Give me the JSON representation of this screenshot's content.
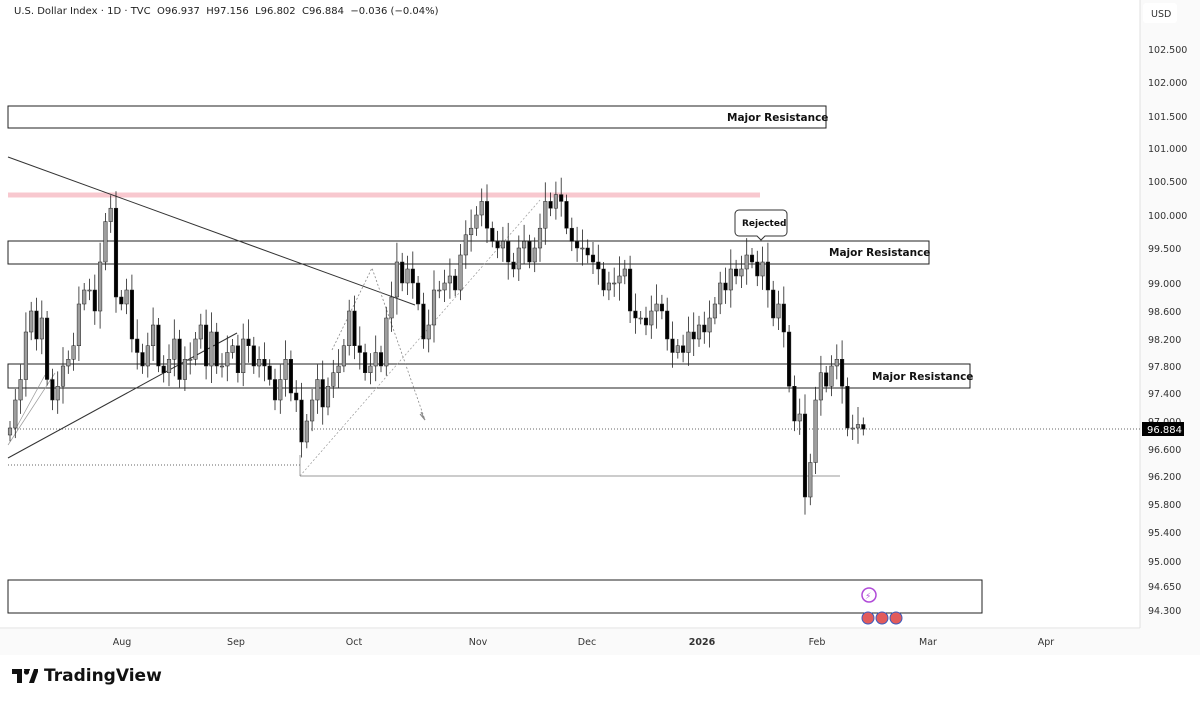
{
  "header": {
    "symbol": "U.S. Dollar Index",
    "interval": "1D",
    "source": "TVC",
    "open": "O96.937",
    "high": "H97.156",
    "low": "L96.802",
    "close": "C96.884",
    "change": "−0.036 (−0.04%)"
  },
  "brand": {
    "name": "TradingView"
  },
  "colors": {
    "bull": "#9e9e9e",
    "bear": "#000000",
    "pink_line": "#f8c8cf",
    "last_price_bg": "#000000"
  },
  "annotations": {
    "zone_top": "Major Resistance",
    "zone_mid": "Major Resistance",
    "zone_low": "Major Resistance",
    "rejected": "Rejected"
  },
  "chart_data": {
    "type": "candlestick",
    "title": "U.S. Dollar Index · 1D · TVC",
    "currency": "USD",
    "last_price": "96.884",
    "y_ticks": [
      "102.500",
      "102.000",
      "101.500",
      "101.000",
      "100.500",
      "100.000",
      "99.500",
      "99.000",
      "98.600",
      "98.200",
      "97.800",
      "97.400",
      "97.000",
      "96.600",
      "96.200",
      "95.800",
      "95.400",
      "95.000",
      "94.650",
      "94.300"
    ],
    "x_ticks": [
      "Aug",
      "Sep",
      "Oct",
      "Nov",
      "Dec",
      "2026",
      "Feb",
      "Mar",
      "Apr"
    ],
    "close": [
      96.9,
      97.3,
      97.6,
      98.3,
      98.6,
      98.2,
      98.5,
      97.6,
      97.3,
      97.5,
      97.8,
      97.9,
      98.1,
      98.7,
      98.9,
      98.9,
      98.6,
      99.3,
      99.9,
      100.1,
      98.8,
      98.7,
      98.9,
      98.2,
      98.0,
      97.8,
      98.1,
      98.4,
      97.8,
      97.7,
      97.9,
      98.2,
      97.6,
      97.9,
      97.9,
      98.2,
      98.4,
      97.8,
      98.3,
      97.8,
      97.8,
      98.0,
      98.1,
      97.7,
      98.2,
      98.1,
      97.8,
      97.9,
      97.8,
      97.6,
      97.3,
      97.6,
      97.9,
      97.4,
      97.3,
      96.7,
      97.0,
      97.3,
      97.6,
      97.2,
      97.5,
      97.7,
      97.8,
      98.1,
      98.6,
      98.1,
      98.0,
      97.7,
      97.8,
      98.0,
      97.8,
      98.5,
      98.8,
      99.3,
      99.0,
      99.2,
      99.0,
      98.7,
      98.2,
      98.4,
      98.9,
      98.9,
      99.0,
      99.1,
      98.9,
      99.4,
      99.7,
      99.8,
      100.0,
      100.2,
      99.8,
      99.6,
      99.5,
      99.6,
      99.3,
      99.2,
      99.5,
      99.6,
      99.3,
      99.5,
      99.8,
      100.2,
      100.1,
      100.3,
      100.2,
      99.8,
      99.6,
      99.5,
      99.5,
      99.4,
      99.3,
      99.2,
      98.9,
      99.0,
      99.0,
      99.1,
      99.2,
      98.6,
      98.5,
      98.5,
      98.4,
      98.6,
      98.7,
      98.6,
      98.2,
      98.0,
      98.1,
      98.0,
      98.3,
      98.2,
      98.4,
      98.3,
      98.5,
      98.7,
      99.0,
      98.9,
      99.2,
      99.1,
      99.2,
      99.4,
      99.3,
      99.1,
      99.3,
      98.9,
      98.5,
      98.7,
      98.3,
      97.5,
      97.0,
      97.1,
      95.9,
      96.4,
      97.3,
      97.7,
      97.5,
      97.8,
      97.9,
      97.5,
      96.9,
      96.9,
      96.95,
      96.884
    ]
  }
}
